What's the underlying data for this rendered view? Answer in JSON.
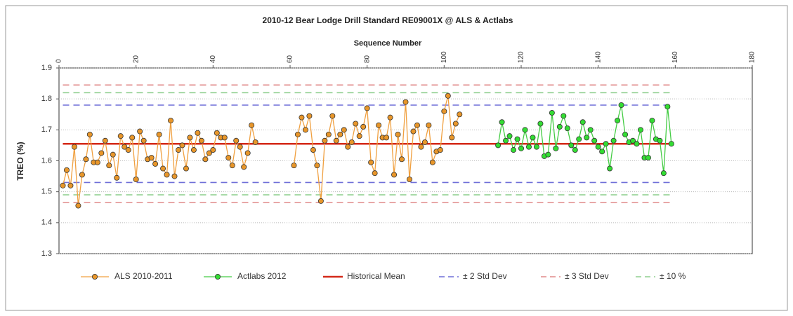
{
  "chart_data": {
    "type": "line",
    "title": "2010-12 Bear Lodge Drill Standard RE09001X @ ALS & Actlabs",
    "xlabel": "Sequence Number",
    "ylabel": "TREO (%)",
    "xlim": [
      0,
      180
    ],
    "xticks": [
      0,
      20,
      40,
      60,
      80,
      100,
      120,
      140,
      160,
      180
    ],
    "ylim": [
      1.3,
      1.9
    ],
    "yticks": [
      1.3,
      1.4,
      1.5,
      1.6,
      1.7,
      1.8,
      1.9
    ],
    "grid": true,
    "legend": "bottom",
    "series": [
      {
        "name": "ALS 2010-2011",
        "color": "#f0a040",
        "marker_color": "#e8962a",
        "x": [
          1,
          2,
          3,
          4,
          5,
          6,
          7,
          8,
          9,
          10,
          11,
          12,
          13,
          14,
          15,
          16,
          17,
          18,
          19,
          20,
          21,
          22,
          23,
          24,
          25,
          26,
          27,
          28,
          29,
          30,
          31,
          32,
          33,
          34,
          35,
          36,
          37,
          38,
          39,
          40,
          41,
          42,
          43,
          44,
          45,
          46,
          47,
          48,
          49,
          50,
          51,
          61,
          62,
          63,
          64,
          65,
          66,
          67,
          68,
          69,
          70,
          71,
          72,
          73,
          74,
          75,
          76,
          77,
          78,
          79,
          80,
          81,
          82,
          83,
          84,
          85,
          86,
          87,
          88,
          89,
          90,
          91,
          92,
          93,
          94,
          95,
          96,
          97,
          98,
          99,
          100,
          101,
          102,
          103,
          104
        ],
        "values": [
          1.52,
          1.57,
          1.52,
          1.645,
          1.455,
          1.555,
          1.605,
          1.685,
          1.595,
          1.595,
          1.625,
          1.665,
          1.585,
          1.62,
          1.545,
          1.68,
          1.645,
          1.635,
          1.675,
          1.54,
          1.695,
          1.665,
          1.605,
          1.61,
          1.59,
          1.685,
          1.575,
          1.555,
          1.73,
          1.55,
          1.635,
          1.65,
          1.575,
          1.675,
          1.635,
          1.69,
          1.665,
          1.605,
          1.625,
          1.635,
          1.69,
          1.675,
          1.675,
          1.61,
          1.585,
          1.665,
          1.645,
          1.58,
          1.625,
          1.715,
          1.66,
          1.585,
          1.685,
          1.74,
          1.7,
          1.745,
          1.635,
          1.585,
          1.47,
          1.665,
          1.685,
          1.745,
          1.665,
          1.685,
          1.7,
          1.645,
          1.66,
          1.72,
          1.68,
          1.71,
          1.77,
          1.595,
          1.56,
          1.715,
          1.675,
          1.675,
          1.74,
          1.555,
          1.685,
          1.605,
          1.79,
          1.54,
          1.695,
          1.715,
          1.645,
          1.66,
          1.715,
          1.595,
          1.63,
          1.635,
          1.76,
          1.81,
          1.675,
          1.72,
          1.75
        ]
      },
      {
        "name": "Actlabs 2012",
        "color": "#44cc44",
        "marker_color": "#33dd33",
        "x": [
          114,
          115,
          116,
          117,
          118,
          119,
          120,
          121,
          122,
          123,
          124,
          125,
          126,
          127,
          128,
          129,
          130,
          131,
          132,
          133,
          134,
          135,
          136,
          137,
          138,
          139,
          140,
          141,
          142,
          143,
          144,
          145,
          146,
          147,
          148,
          149,
          150,
          151,
          152,
          153,
          154,
          155,
          156,
          157,
          158,
          159
        ],
        "values": [
          1.65,
          1.725,
          1.665,
          1.68,
          1.635,
          1.67,
          1.64,
          1.7,
          1.645,
          1.675,
          1.645,
          1.72,
          1.615,
          1.62,
          1.755,
          1.64,
          1.71,
          1.745,
          1.705,
          1.65,
          1.635,
          1.67,
          1.725,
          1.675,
          1.7,
          1.665,
          1.645,
          1.63,
          1.655,
          1.575,
          1.665,
          1.73,
          1.78,
          1.685,
          1.66,
          1.665,
          1.655,
          1.7,
          1.61,
          1.61,
          1.73,
          1.67,
          1.665,
          1.56,
          1.775,
          1.655
        ]
      }
    ],
    "reference_lines": [
      {
        "name": "Historical Mean",
        "color": "#d42a1a",
        "style": "solid",
        "values": [
          1.655
        ]
      },
      {
        "name": "± 2 Std Dev",
        "color": "#6f6fd8",
        "style": "dashed",
        "values": [
          1.78,
          1.53
        ]
      },
      {
        "name": "± 3 Std Dev",
        "color": "#e08a8a",
        "style": "dashed",
        "values": [
          1.845,
          1.465
        ]
      },
      {
        "name": "± 10 %",
        "color": "#8fcf8f",
        "style": "dashed",
        "values": [
          1.82,
          1.49
        ]
      }
    ]
  }
}
